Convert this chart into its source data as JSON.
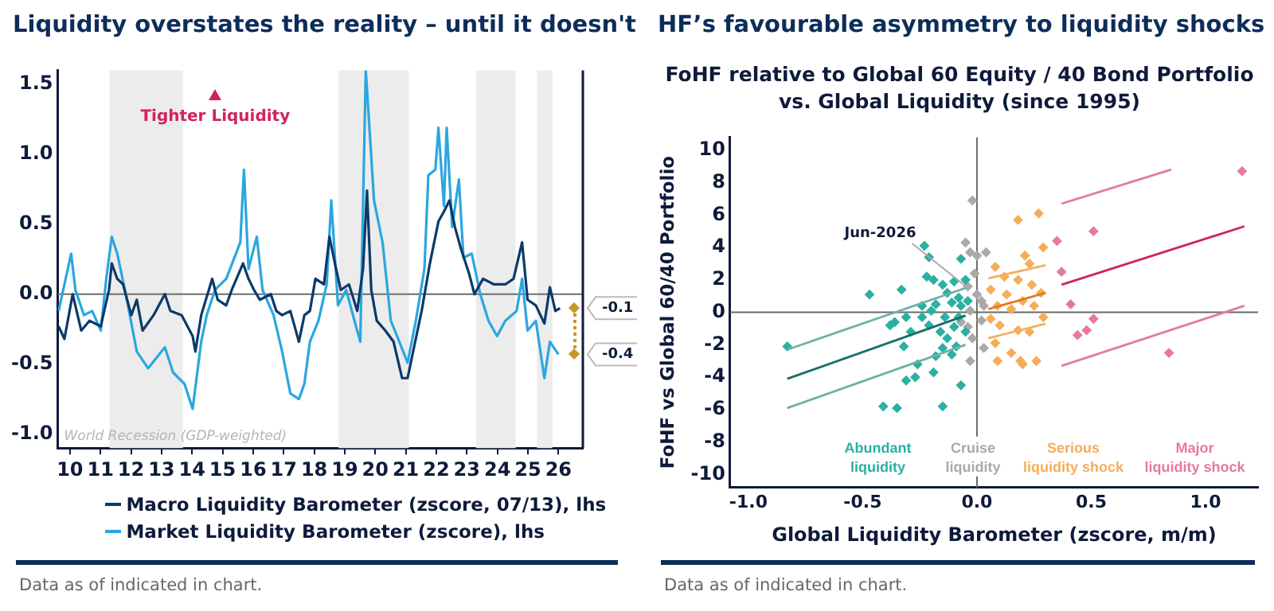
{
  "chart_data": [
    {
      "type": "line",
      "title": "Liquidity overstates the reality – until it doesn't",
      "xlim": [
        2009.6,
        2026.8
      ],
      "xticks": [
        {
          "value": 2010,
          "label": "10"
        },
        {
          "value": 2011,
          "label": "11"
        },
        {
          "value": 2012,
          "label": "12"
        },
        {
          "value": 2013,
          "label": "13"
        },
        {
          "value": 2014,
          "label": "14"
        },
        {
          "value": 2015,
          "label": "15"
        },
        {
          "value": 2016,
          "label": "16"
        },
        {
          "value": 2017,
          "label": "17"
        },
        {
          "value": 2018,
          "label": "18"
        },
        {
          "value": 2019,
          "label": "19"
        },
        {
          "value": 2020,
          "label": "20"
        },
        {
          "value": 2021,
          "label": "21"
        },
        {
          "value": 2022,
          "label": "22"
        },
        {
          "value": 2023,
          "label": "23"
        },
        {
          "value": 2024,
          "label": "24"
        },
        {
          "value": 2025,
          "label": "25"
        },
        {
          "value": 2026,
          "label": "26"
        }
      ],
      "ylim": [
        -1.1,
        1.6
      ],
      "yticks": [
        {
          "value": -1,
          "label": "-1.0"
        },
        {
          "value": -0.5,
          "label": "-0.5"
        },
        {
          "value": 0,
          "label": "0.0"
        },
        {
          "value": 0.5,
          "label": "0.5"
        },
        {
          "value": 1,
          "label": "1.0"
        },
        {
          "value": 1.5,
          "label": "1.5"
        }
      ],
      "grid": false,
      "legend": "bottom",
      "series": [
        {
          "name": "Macro Liquidity Barometer (zscore, 07/13), lhs",
          "color": "#0b3a6a",
          "x": [
            2009.63,
            2009.82,
            2010.09,
            2010.37,
            2010.64,
            2011.01,
            2011.28,
            2011.37,
            2011.55,
            2011.74,
            2012.01,
            2012.19,
            2012.38,
            2012.74,
            2013.11,
            2013.29,
            2013.66,
            2014.02,
            2014.11,
            2014.3,
            2014.66,
            2014.84,
            2015.12,
            2015.3,
            2015.67,
            2015.85,
            2016.03,
            2016.22,
            2016.58,
            2016.76,
            2016.95,
            2017.22,
            2017.5,
            2017.68,
            2017.86,
            2018.04,
            2018.32,
            2018.5,
            2018.68,
            2018.87,
            2019.14,
            2019.41,
            2019.6,
            2019.73,
            2019.87,
            2020.05,
            2020.33,
            2020.6,
            2020.88,
            2021.06,
            2021.24,
            2021.52,
            2021.79,
            2022.07,
            2022.25,
            2022.43,
            2022.61,
            2022.8,
            2023.07,
            2023.25,
            2023.53,
            2023.89,
            2024.26,
            2024.53,
            2024.81,
            2024.99,
            2025.26,
            2025.54,
            2025.72,
            2025.9,
            2026.05
          ],
          "values": [
            -0.23,
            -0.32,
            0,
            -0.26,
            -0.19,
            -0.23,
            0.03,
            0.22,
            0.11,
            0.07,
            -0.15,
            -0.04,
            -0.26,
            -0.15,
            0,
            -0.12,
            -0.15,
            -0.3,
            -0.41,
            -0.15,
            0.11,
            -0.04,
            -0.08,
            0.03,
            0.22,
            0.11,
            0.03,
            -0.04,
            0,
            -0.12,
            -0.15,
            -0.12,
            -0.34,
            -0.15,
            -0.12,
            0.11,
            0.07,
            0.41,
            0.22,
            0.03,
            0.07,
            -0.12,
            0.18,
            0.74,
            0.03,
            -0.19,
            -0.26,
            -0.34,
            -0.6,
            -0.6,
            -0.41,
            -0.12,
            0.22,
            0.52,
            0.59,
            0.67,
            0.48,
            0.33,
            0.15,
            0,
            0.11,
            0.07,
            0.07,
            0.11,
            0.37,
            -0.04,
            -0.08,
            -0.21,
            0.05,
            -0.12,
            -0.1
          ]
        },
        {
          "name": "Market Liquidity Barometer (zscore), lhs",
          "color": "#2aa7df",
          "x": [
            2009.63,
            2010.04,
            2010.18,
            2010.46,
            2010.73,
            2011.01,
            2011.19,
            2011.37,
            2011.55,
            2011.83,
            2012.19,
            2012.56,
            2013.11,
            2013.38,
            2013.75,
            2014.02,
            2014.3,
            2014.48,
            2014.75,
            2015.12,
            2015.58,
            2015.7,
            2015.85,
            2016.12,
            2016.31,
            2016.67,
            2016.95,
            2017.22,
            2017.5,
            2017.68,
            2017.86,
            2018.14,
            2018.41,
            2018.56,
            2018.78,
            2019.05,
            2019.32,
            2019.51,
            2019.69,
            2019.96,
            2020.24,
            2020.51,
            2020.79,
            2021.06,
            2021.33,
            2021.61,
            2021.74,
            2021.97,
            2022.07,
            2022.25,
            2022.34,
            2022.52,
            2022.74,
            2022.89,
            2023.16,
            2023.44,
            2023.71,
            2023.99,
            2024.26,
            2024.63,
            2024.81,
            2024.99,
            2025.26,
            2025.54,
            2025.72,
            2026
          ],
          "values": [
            -0.12,
            0.29,
            0.03,
            -0.15,
            -0.12,
            -0.26,
            0.11,
            0.41,
            0.29,
            0,
            -0.41,
            -0.53,
            -0.38,
            -0.56,
            -0.64,
            -0.82,
            -0.34,
            -0.15,
            0.03,
            0.11,
            0.37,
            0.89,
            0.18,
            0.41,
            0.03,
            -0.15,
            -0.41,
            -0.71,
            -0.75,
            -0.64,
            -0.34,
            -0.19,
            0.07,
            0.67,
            -0.08,
            0.03,
            -0.19,
            -0.34,
            1.6,
            0.67,
            0.37,
            -0.19,
            -0.34,
            -0.49,
            -0.19,
            0.18,
            0.85,
            0.89,
            1.19,
            0.63,
            1.19,
            0.48,
            0.82,
            0.26,
            0.29,
            0,
            -0.19,
            -0.3,
            -0.19,
            -0.12,
            0.11,
            -0.26,
            -0.19,
            -0.6,
            -0.34,
            -0.43
          ]
        }
      ],
      "bands": [
        {
          "axis": "x",
          "from": 2011.3,
          "to": 2013.7,
          "label": "World Recession (GDP-weighted)",
          "color": "#ececec"
        },
        {
          "axis": "x",
          "from": 2018.8,
          "to": 2021.1,
          "color": "#ececec"
        },
        {
          "axis": "x",
          "from": 2023.3,
          "to": 2024.6,
          "color": "#ececec"
        },
        {
          "axis": "x",
          "from": 2025.3,
          "to": 2025.8,
          "color": "#ececec"
        }
      ],
      "ref_lines": [
        {
          "axis": "y",
          "value": 0,
          "color": "#6b6b6b"
        }
      ],
      "annotations": [
        "Tighter Liquidity",
        "-0.1",
        "-0.4",
        "Data as of indicated in chart."
      ]
    },
    {
      "type": "scatter",
      "title": "HF’s favourable asymmetry to liquidity shocks",
      "subtitle": "FoHF relative to Global 60 Equity / 40 Bond Portfolio vs. Global Liquidity (since 1995)",
      "xlabel": "Global Liquidity Barometer (zscore, m/m)",
      "ylabel": "FoHF vs Global 60/40 Portfolio",
      "xlim": [
        -1.08,
        1.23
      ],
      "xticks": [
        {
          "value": -1,
          "label": "-1.0"
        },
        {
          "value": -0.5,
          "label": "-0.5"
        },
        {
          "value": 0,
          "label": "0.0"
        },
        {
          "value": 0.5,
          "label": "0.5"
        },
        {
          "value": 1,
          "label": "1.0"
        }
      ],
      "ylim": [
        -10.8,
        10.8
      ],
      "yticks": [
        -10,
        -8,
        -6,
        -4,
        -2,
        0,
        2,
        4,
        6,
        8,
        10
      ],
      "grid": false,
      "legend": "bottom",
      "series": [
        {
          "name": "Abundant liquidity",
          "color": "#2bb0a3",
          "marker": "diamond",
          "x": [
            -0.83,
            -0.38,
            -0.36,
            -0.32,
            -0.31,
            -0.29,
            -0.31,
            -0.27,
            -0.41,
            -0.35,
            -0.15,
            -0.26,
            -0.19,
            -0.07,
            -0.24,
            -0.21,
            -0.18,
            -0.15,
            -0.13,
            -0.1,
            -0.08,
            -0.07,
            -0.04,
            -0.05,
            -0.09,
            -0.11,
            -0.16,
            -0.2,
            -0.14,
            -0.47,
            -0.33,
            -0.23,
            -0.21,
            -0.22,
            -0.19,
            -0.15,
            -0.13,
            -0.1,
            -0.07,
            -0.05,
            -0.08,
            -0.11,
            -0.18,
            -0.24
          ],
          "values": [
            -2.1,
            -0.8,
            -0.6,
            -2.1,
            -0.3,
            -1.2,
            -4.2,
            -4,
            -5.8,
            -5.9,
            -5.8,
            -3.2,
            -3.7,
            -4.5,
            -0.3,
            -0.8,
            -2.7,
            -2.2,
            -1.6,
            -0.9,
            -0.3,
            0.4,
            0.7,
            -1.2,
            -2.1,
            -2.6,
            -1.2,
            0.1,
            -0.3,
            1.1,
            1.4,
            4.1,
            3.4,
            2.2,
            2,
            1.7,
            1.2,
            1.9,
            3.3,
            2,
            0.9,
            0.6,
            0.5,
            0.4
          ]
        },
        {
          "name": "Cruise liquidity",
          "color": "#a9a9a9",
          "marker": "diamond",
          "x": [
            -0.05,
            -0.02,
            -0.03,
            0,
            0.04,
            -0.01,
            -0.04,
            0,
            0.02,
            -0.03,
            0.02,
            -0.04,
            -0.02,
            0.03,
            -0.03,
            -0.07,
            0.03
          ],
          "values": [
            4.3,
            6.9,
            3.7,
            3.5,
            3.7,
            2.4,
            1.6,
            1.1,
            0.7,
            0.1,
            -0.5,
            -0.9,
            -1.6,
            -2.2,
            -3,
            -0.6,
            0.4
          ]
        },
        {
          "name": "Serious liquidity shock",
          "color": "#f5ad5a",
          "marker": "diamond",
          "x": [
            0.18,
            0.27,
            0.29,
            0.21,
            0.23,
            0.08,
            0.12,
            0.18,
            0.24,
            0.28,
            0.06,
            0.13,
            0.2,
            0.09,
            0.15,
            0.25,
            0.06,
            0.1,
            0.18,
            0.29,
            0.23,
            0.09,
            0.15,
            0.19,
            0.26,
            0.2,
            0.08
          ],
          "values": [
            5.7,
            6.1,
            4,
            3.5,
            3,
            2.8,
            2.2,
            2,
            1.7,
            1.2,
            1.4,
            1.1,
            0.7,
            0.4,
            0.2,
            0.4,
            -0.4,
            -0.8,
            -1.1,
            -0.3,
            -1.2,
            -3,
            -2.5,
            -3,
            -3,
            -3.2,
            -1.9
          ]
        },
        {
          "name": "Major liquidity shock",
          "color": "#e7799b",
          "marker": "diamond",
          "x": [
            1.16,
            0.51,
            0.35,
            0.37,
            0.41,
            0.51,
            0.48,
            0.44,
            0.84
          ],
          "values": [
            8.7,
            5,
            4.4,
            2.5,
            0.5,
            -0.4,
            -1.1,
            -1.4,
            -2.5
          ]
        },
        {
          "type": "line",
          "color": "#1a6e66",
          "x": [
            -0.83,
            -0.05
          ],
          "values": [
            -4.1,
            -0.2
          ]
        },
        {
          "type": "line",
          "color": "#6fb0a8",
          "x": [
            -0.83,
            -0.05
          ],
          "values": [
            -2.3,
            1.5
          ]
        },
        {
          "type": "line",
          "color": "#6fb0a8",
          "x": [
            -0.83,
            -0.05
          ],
          "values": [
            -5.9,
            -2
          ]
        },
        {
          "type": "line",
          "color": "#e0781a",
          "x": [
            0.05,
            0.3
          ],
          "values": [
            0.2,
            1.2
          ]
        },
        {
          "type": "line",
          "color": "#f5b060",
          "x": [
            0.05,
            0.3
          ],
          "values": [
            2.1,
            2.9
          ]
        },
        {
          "type": "line",
          "color": "#f5b060",
          "x": [
            0.05,
            0.3
          ],
          "values": [
            -1.6,
            -0.7
          ]
        },
        {
          "type": "line",
          "color": "#d0245a",
          "x": [
            0.37,
            1.17
          ],
          "values": [
            1.7,
            5.3
          ]
        },
        {
          "type": "line",
          "color": "#e07c9c",
          "x": [
            0.37,
            0.85
          ],
          "values": [
            6.7,
            8.8
          ]
        },
        {
          "type": "line",
          "color": "#e07c9c",
          "x": [
            0.37,
            1.17
          ],
          "values": [
            -3.3,
            0.4
          ]
        }
      ],
      "ref_lines": [
        {
          "axis": "x",
          "value": 0,
          "color": "#6b6b6b"
        },
        {
          "axis": "y",
          "value": 0,
          "color": "#6b6b6b"
        }
      ],
      "annotations": [
        {
          "text": "Jun-2026",
          "x": -0.04,
          "y": 1.5
        },
        "Data as of indicated in chart."
      ]
    }
  ]
}
